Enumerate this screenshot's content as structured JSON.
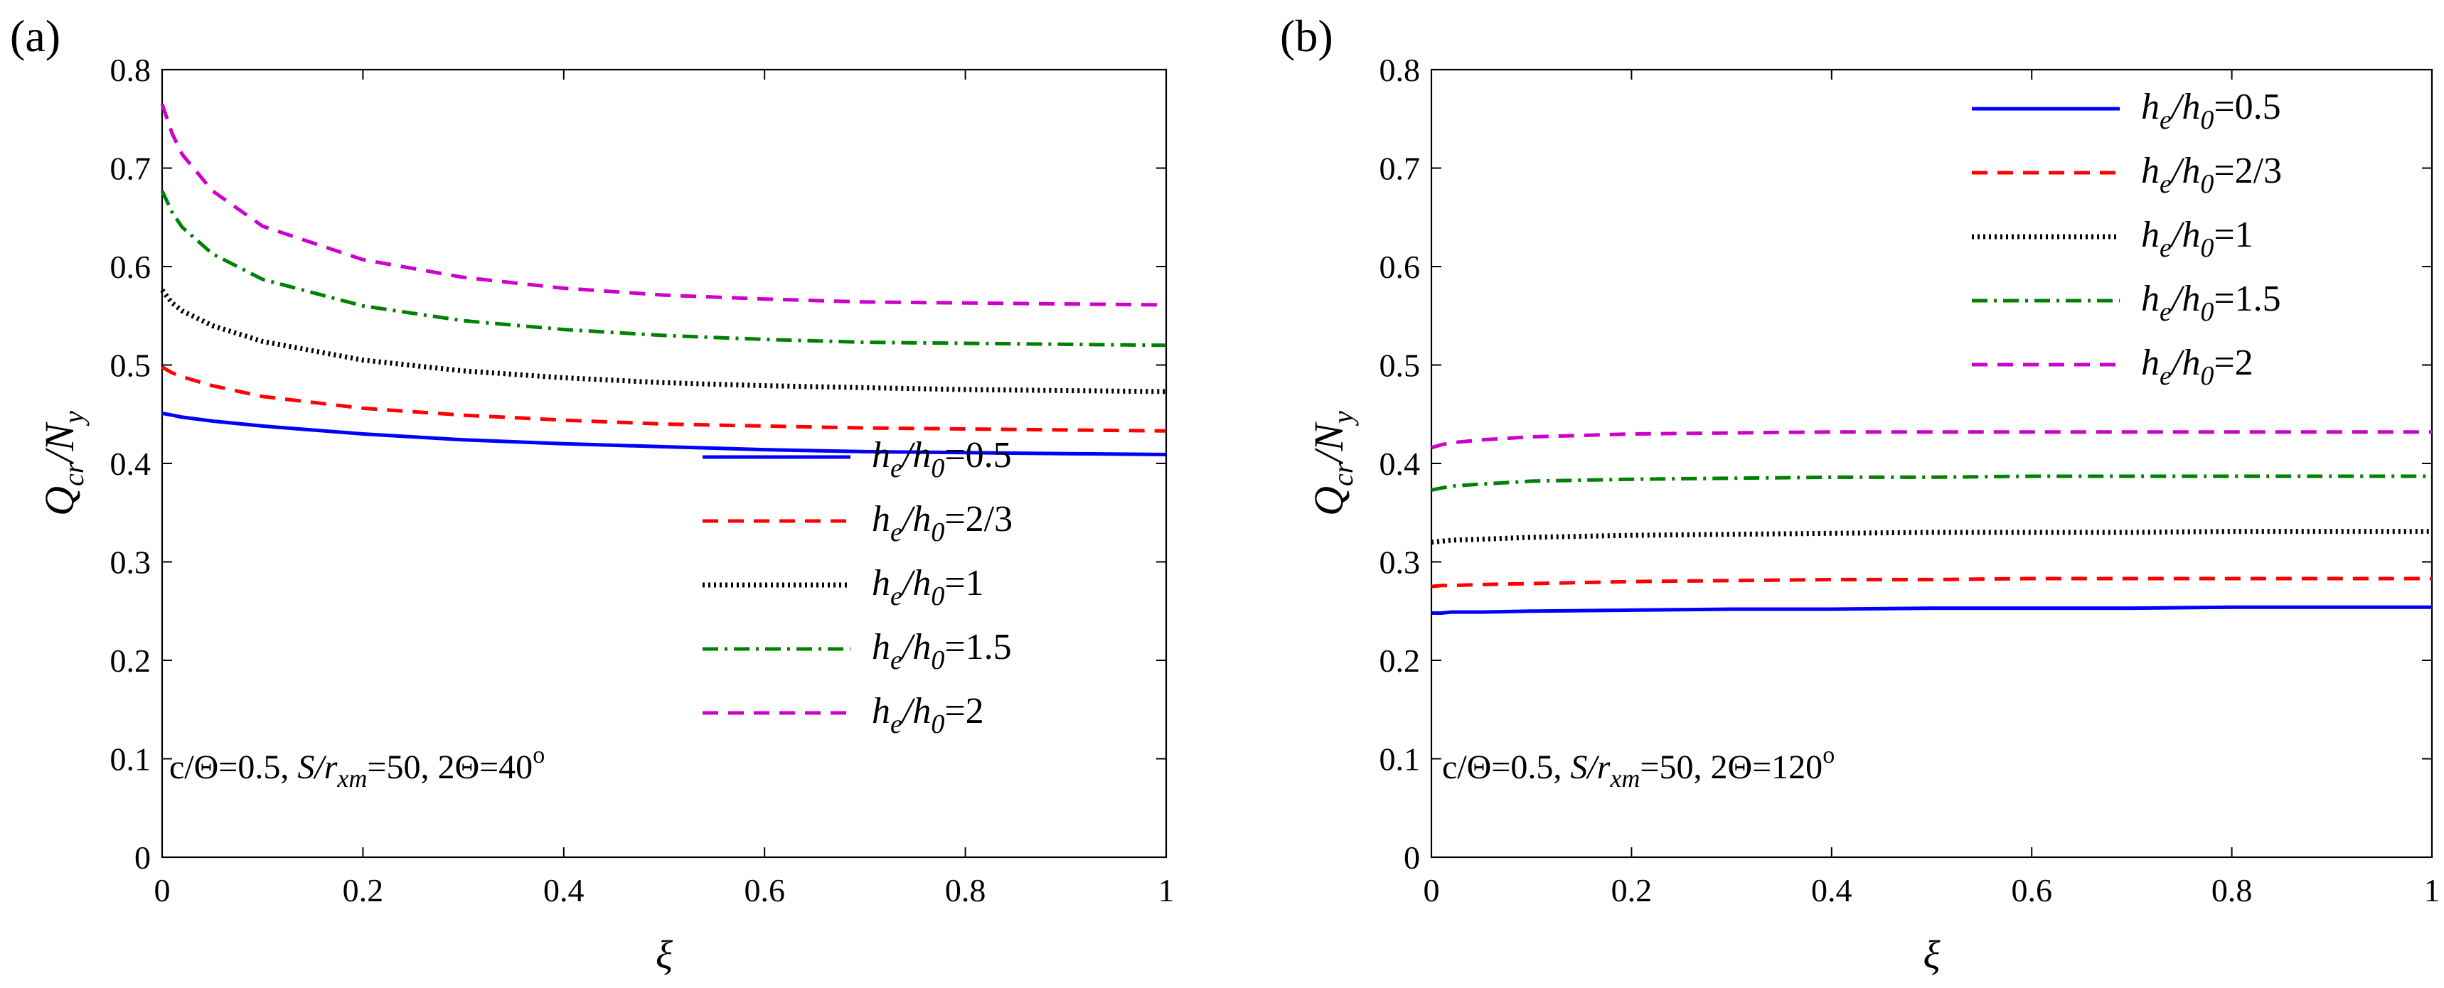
{
  "figure": {
    "description_free": true
  },
  "chart_data": [
    {
      "type": "line",
      "panel_label": "(a)",
      "xlabel": "ξ",
      "ylabel_main": "Q",
      "ylabel_sub1": "cr",
      "ylabel_mid": "/N",
      "ylabel_sub2": "y",
      "xlim": [
        0,
        1
      ],
      "ylim": [
        0,
        0.8
      ],
      "xticks": [
        0,
        0.2,
        0.4,
        0.6,
        0.8,
        1
      ],
      "xtick_labels": [
        "0",
        "0.2",
        "0.4",
        "0.6",
        "0.8",
        "1"
      ],
      "yticks": [
        0,
        0.1,
        0.2,
        0.3,
        0.4,
        0.5,
        0.6,
        0.7,
        0.8
      ],
      "ytick_labels": [
        "0",
        "0.1",
        "0.2",
        "0.3",
        "0.4",
        "0.5",
        "0.6",
        "0.7",
        "0.8"
      ],
      "legend_position": "lower-right",
      "annotation": {
        "p1": "c/Θ=0.5, ",
        "p2": "S/r",
        "p3": "xm",
        "p4": "=50, 2Θ=40",
        "p5": "o"
      },
      "x": [
        0,
        0.01,
        0.02,
        0.05,
        0.1,
        0.2,
        0.3,
        0.4,
        0.5,
        0.6,
        0.7,
        0.8,
        0.9,
        1.0
      ],
      "series": [
        {
          "name": "he/h0=0.5",
          "lab_var": "h",
          "lab_sub1": "e",
          "lab_mid": "/h",
          "lab_sub2": "0",
          "lab_val": "=0.5",
          "color": "#0000ff",
          "dash": "solid",
          "values": [
            0.451,
            0.449,
            0.447,
            0.443,
            0.438,
            0.43,
            0.424,
            0.42,
            0.417,
            0.414,
            0.412,
            0.411,
            0.41,
            0.409
          ]
        },
        {
          "name": "he/h0=2/3",
          "lab_var": "h",
          "lab_sub1": "e",
          "lab_mid": "/h",
          "lab_sub2": "0",
          "lab_val": "=2/3",
          "color": "#ff0000",
          "dash": "dashed",
          "values": [
            0.498,
            0.492,
            0.488,
            0.479,
            0.468,
            0.456,
            0.449,
            0.444,
            0.44,
            0.438,
            0.436,
            0.435,
            0.434,
            0.433
          ]
        },
        {
          "name": "he/h0=1",
          "lab_var": "h",
          "lab_sub1": "e",
          "lab_mid": "/h",
          "lab_sub2": "0",
          "lab_val": "=1",
          "color": "#000000",
          "dash": "dotted",
          "values": [
            0.576,
            0.563,
            0.555,
            0.54,
            0.524,
            0.505,
            0.494,
            0.487,
            0.482,
            0.479,
            0.477,
            0.475,
            0.474,
            0.473
          ]
        },
        {
          "name": "he/h0=1.5",
          "lab_var": "h",
          "lab_sub1": "e",
          "lab_mid": "/h",
          "lab_sub2": "0",
          "lab_val": "=1.5",
          "color": "#008000",
          "dash": "dashdot",
          "values": [
            0.677,
            0.655,
            0.64,
            0.613,
            0.587,
            0.56,
            0.545,
            0.536,
            0.53,
            0.526,
            0.523,
            0.522,
            0.521,
            0.52
          ]
        },
        {
          "name": "he/h0=2",
          "lab_var": "h",
          "lab_sub1": "e",
          "lab_mid": "/h",
          "lab_sub2": "0",
          "lab_val": "=2",
          "color": "#cc00cc",
          "dash": "dashed",
          "values": [
            0.765,
            0.735,
            0.714,
            0.677,
            0.641,
            0.607,
            0.589,
            0.578,
            0.571,
            0.567,
            0.564,
            0.563,
            0.562,
            0.561
          ]
        }
      ]
    },
    {
      "type": "line",
      "panel_label": "(b)",
      "xlabel": "ξ",
      "ylabel_main": "Q",
      "ylabel_sub1": "cr",
      "ylabel_mid": "/N",
      "ylabel_sub2": "y",
      "xlim": [
        0,
        1
      ],
      "ylim": [
        0,
        0.8
      ],
      "xticks": [
        0,
        0.2,
        0.4,
        0.6,
        0.8,
        1
      ],
      "xtick_labels": [
        "0",
        "0.2",
        "0.4",
        "0.6",
        "0.8",
        "1"
      ],
      "yticks": [
        0,
        0.1,
        0.2,
        0.3,
        0.4,
        0.5,
        0.6,
        0.7,
        0.8
      ],
      "ytick_labels": [
        "0",
        "0.1",
        "0.2",
        "0.3",
        "0.4",
        "0.5",
        "0.6",
        "0.7",
        "0.8"
      ],
      "legend_position": "top-right",
      "annotation": {
        "p1": "c/Θ=0.5, ",
        "p2": "S/r",
        "p3": "xm",
        "p4": "=50, 2Θ=120",
        "p5": "o"
      },
      "x": [
        0,
        0.01,
        0.02,
        0.05,
        0.1,
        0.2,
        0.3,
        0.4,
        0.5,
        0.6,
        0.7,
        0.8,
        0.9,
        1.0
      ],
      "series": [
        {
          "name": "he/h0=0.5",
          "lab_var": "h",
          "lab_sub1": "e",
          "lab_mid": "/h",
          "lab_sub2": "0",
          "lab_val": "=0.5",
          "color": "#0000ff",
          "dash": "solid",
          "values": [
            0.248,
            0.248,
            0.249,
            0.249,
            0.25,
            0.251,
            0.252,
            0.252,
            0.253,
            0.253,
            0.253,
            0.254,
            0.254,
            0.254
          ]
        },
        {
          "name": "he/h0=2/3",
          "lab_var": "h",
          "lab_sub1": "e",
          "lab_mid": "/h",
          "lab_sub2": "0",
          "lab_val": "=2/3",
          "color": "#ff0000",
          "dash": "dashed",
          "values": [
            0.275,
            0.276,
            0.276,
            0.277,
            0.278,
            0.28,
            0.281,
            0.282,
            0.282,
            0.283,
            0.283,
            0.283,
            0.283,
            0.283
          ]
        },
        {
          "name": "he/h0=1",
          "lab_var": "h",
          "lab_sub1": "e",
          "lab_mid": "/h",
          "lab_sub2": "0",
          "lab_val": "=1",
          "color": "#000000",
          "dash": "dotted",
          "values": [
            0.32,
            0.321,
            0.322,
            0.323,
            0.325,
            0.327,
            0.328,
            0.329,
            0.33,
            0.33,
            0.33,
            0.331,
            0.331,
            0.331
          ]
        },
        {
          "name": "he/h0=1.5",
          "lab_var": "h",
          "lab_sub1": "e",
          "lab_mid": "/h",
          "lab_sub2": "0",
          "lab_val": "=1.5",
          "color": "#008000",
          "dash": "dashdot",
          "values": [
            0.373,
            0.375,
            0.377,
            0.379,
            0.382,
            0.384,
            0.385,
            0.386,
            0.386,
            0.387,
            0.387,
            0.387,
            0.387,
            0.387
          ]
        },
        {
          "name": "he/h0=2",
          "lab_var": "h",
          "lab_sub1": "e",
          "lab_mid": "/h",
          "lab_sub2": "0",
          "lab_val": "=2",
          "color": "#cc00cc",
          "dash": "dashed",
          "values": [
            0.416,
            0.419,
            0.421,
            0.424,
            0.427,
            0.43,
            0.431,
            0.432,
            0.432,
            0.432,
            0.432,
            0.432,
            0.432,
            0.432
          ]
        }
      ]
    }
  ]
}
